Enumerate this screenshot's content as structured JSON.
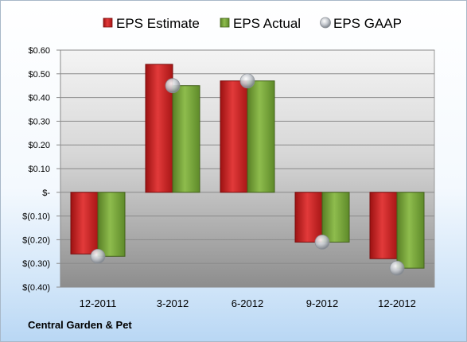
{
  "company": "Central Garden & Pet",
  "chart_data": {
    "type": "bar",
    "categories": [
      "12-2011",
      "3-2012",
      "6-2012",
      "9-2012",
      "12-2012"
    ],
    "series": [
      {
        "name": "EPS Estimate",
        "type": "bar",
        "color": "#cc1f1f",
        "values": [
          -0.26,
          0.54,
          0.47,
          -0.21,
          -0.28
        ]
      },
      {
        "name": "EPS Actual",
        "type": "bar",
        "color": "#77a43a",
        "values": [
          -0.27,
          0.45,
          0.47,
          -0.21,
          -0.32
        ]
      },
      {
        "name": "EPS GAAP",
        "type": "marker",
        "color": "#b8bcc4",
        "values": [
          -0.27,
          0.45,
          0.47,
          -0.21,
          -0.32
        ]
      }
    ],
    "ylim": [
      -0.4,
      0.6
    ],
    "yticks": [
      0.6,
      0.5,
      0.4,
      0.3,
      0.2,
      0.1,
      0.0,
      -0.1,
      -0.2,
      -0.3,
      -0.4
    ],
    "ytick_labels": [
      "$0.60",
      "$0.50",
      "$0.40",
      "$0.30",
      "$0.20",
      "$0.10",
      "$-",
      "$(0.10)",
      "$(0.20)",
      "$(0.30)",
      "$(0.40)"
    ],
    "grid": true,
    "legend_position": "top"
  }
}
